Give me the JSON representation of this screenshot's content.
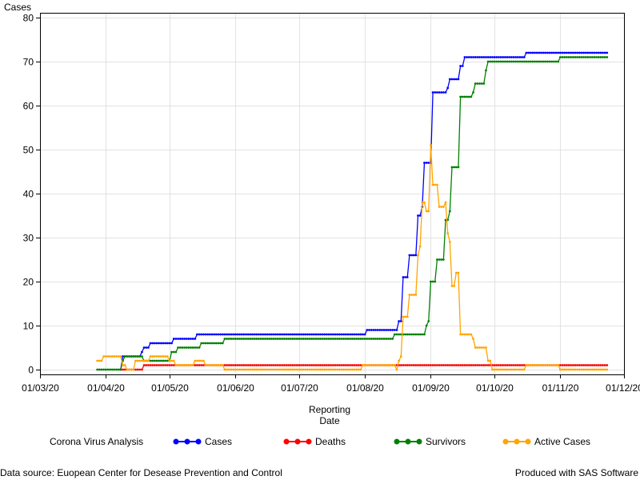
{
  "chart_data": {
    "type": "line",
    "ylabel": "Cases",
    "xlabel_line1": "Reporting",
    "xlabel_line2": "Date",
    "ylim": [
      0,
      80
    ],
    "yticks": [
      0,
      10,
      20,
      30,
      40,
      50,
      60,
      70,
      80
    ],
    "xlim": [
      "2020-03-01",
      "2020-12-01"
    ],
    "xticks": [
      {
        "date": "2020-03-01",
        "label": "01/03/20"
      },
      {
        "date": "2020-04-01",
        "label": "01/04/20"
      },
      {
        "date": "2020-05-01",
        "label": "01/05/20"
      },
      {
        "date": "2020-06-01",
        "label": "01/06/20"
      },
      {
        "date": "2020-07-01",
        "label": "01/07/20"
      },
      {
        "date": "2020-08-01",
        "label": "01/08/20"
      },
      {
        "date": "2020-09-01",
        "label": "01/09/20"
      },
      {
        "date": "2020-10-01",
        "label": "01/10/20"
      },
      {
        "date": "2020-11-01",
        "label": "01/11/20"
      },
      {
        "date": "2020-12-01",
        "label": "01/12/20"
      }
    ],
    "grid": true,
    "legend_position": "bottom",
    "legend_title": "Corona Virus Analysis",
    "start_date": "2020-03-28",
    "end_date": "2020-11-23",
    "series": [
      {
        "name": "Cases",
        "color": "#0000ff",
        "steps": [
          [
            "2020-04-08",
            0
          ],
          [
            "2020-04-09",
            3
          ],
          [
            "2020-04-18",
            4
          ],
          [
            "2020-04-19",
            5
          ],
          [
            "2020-04-22",
            6
          ],
          [
            "2020-05-03",
            7
          ],
          [
            "2020-05-14",
            8
          ],
          [
            "2020-08-02",
            9
          ],
          [
            "2020-08-17",
            11
          ],
          [
            "2020-08-19",
            21
          ],
          [
            "2020-08-22",
            26
          ],
          [
            "2020-08-26",
            35
          ],
          [
            "2020-08-28",
            37
          ],
          [
            "2020-08-29",
            47
          ],
          [
            "2020-09-02",
            63
          ],
          [
            "2020-09-09",
            64
          ],
          [
            "2020-09-10",
            66
          ],
          [
            "2020-09-15",
            69
          ],
          [
            "2020-09-17",
            71
          ],
          [
            "2020-10-16",
            72
          ]
        ]
      },
      {
        "name": "Deaths",
        "color": "#ff0000",
        "steps": [
          [
            "2020-04-08",
            0
          ],
          [
            "2020-04-19",
            1
          ],
          [
            "2020-11-23",
            1
          ]
        ]
      },
      {
        "name": "Survivors",
        "color": "#008000",
        "steps": [
          [
            "2020-03-28",
            0
          ],
          [
            "2020-04-09",
            2
          ],
          [
            "2020-04-10",
            3
          ],
          [
            "2020-04-19",
            2
          ],
          [
            "2020-05-02",
            4
          ],
          [
            "2020-05-05",
            5
          ],
          [
            "2020-05-16",
            6
          ],
          [
            "2020-05-27",
            7
          ],
          [
            "2020-08-15",
            8
          ],
          [
            "2020-08-30",
            10
          ],
          [
            "2020-08-31",
            11
          ],
          [
            "2020-09-01",
            20
          ],
          [
            "2020-09-04",
            25
          ],
          [
            "2020-09-08",
            34
          ],
          [
            "2020-09-10",
            36
          ],
          [
            "2020-09-11",
            46
          ],
          [
            "2020-09-15",
            62
          ],
          [
            "2020-09-21",
            63
          ],
          [
            "2020-09-22",
            65
          ],
          [
            "2020-09-27",
            68
          ],
          [
            "2020-09-28",
            70
          ],
          [
            "2020-11-01",
            71
          ]
        ]
      },
      {
        "name": "Active Cases",
        "color": "#ffa500",
        "steps": [
          [
            "2020-03-28",
            2
          ],
          [
            "2020-03-31",
            3
          ],
          [
            "2020-04-09",
            1
          ],
          [
            "2020-04-11",
            0
          ],
          [
            "2020-04-15",
            2
          ],
          [
            "2020-04-22",
            3
          ],
          [
            "2020-05-01",
            2
          ],
          [
            "2020-05-04",
            1
          ],
          [
            "2020-05-13",
            2
          ],
          [
            "2020-05-18",
            1
          ],
          [
            "2020-05-27",
            0
          ],
          [
            "2020-07-31",
            1
          ],
          [
            "2020-08-16",
            0
          ],
          [
            "2020-08-17",
            2
          ],
          [
            "2020-08-18",
            3
          ],
          [
            "2020-08-19",
            12
          ],
          [
            "2020-08-22",
            17
          ],
          [
            "2020-08-26",
            26
          ],
          [
            "2020-08-27",
            28
          ],
          [
            "2020-08-28",
            38
          ],
          [
            "2020-08-30",
            36
          ],
          [
            "2020-09-01",
            51
          ],
          [
            "2020-09-02",
            42
          ],
          [
            "2020-09-05",
            37
          ],
          [
            "2020-09-08",
            38
          ],
          [
            "2020-09-09",
            31
          ],
          [
            "2020-09-10",
            29
          ],
          [
            "2020-09-11",
            19
          ],
          [
            "2020-09-13",
            22
          ],
          [
            "2020-09-15",
            8
          ],
          [
            "2020-09-21",
            7
          ],
          [
            "2020-09-22",
            5
          ],
          [
            "2020-09-28",
            2
          ],
          [
            "2020-09-30",
            0
          ],
          [
            "2020-10-16",
            1
          ],
          [
            "2020-11-01",
            0
          ]
        ]
      }
    ]
  },
  "footer": {
    "source": "Data source: Euopean Center for Desease Prevention and Control",
    "produced": "Produced with SAS Software"
  }
}
